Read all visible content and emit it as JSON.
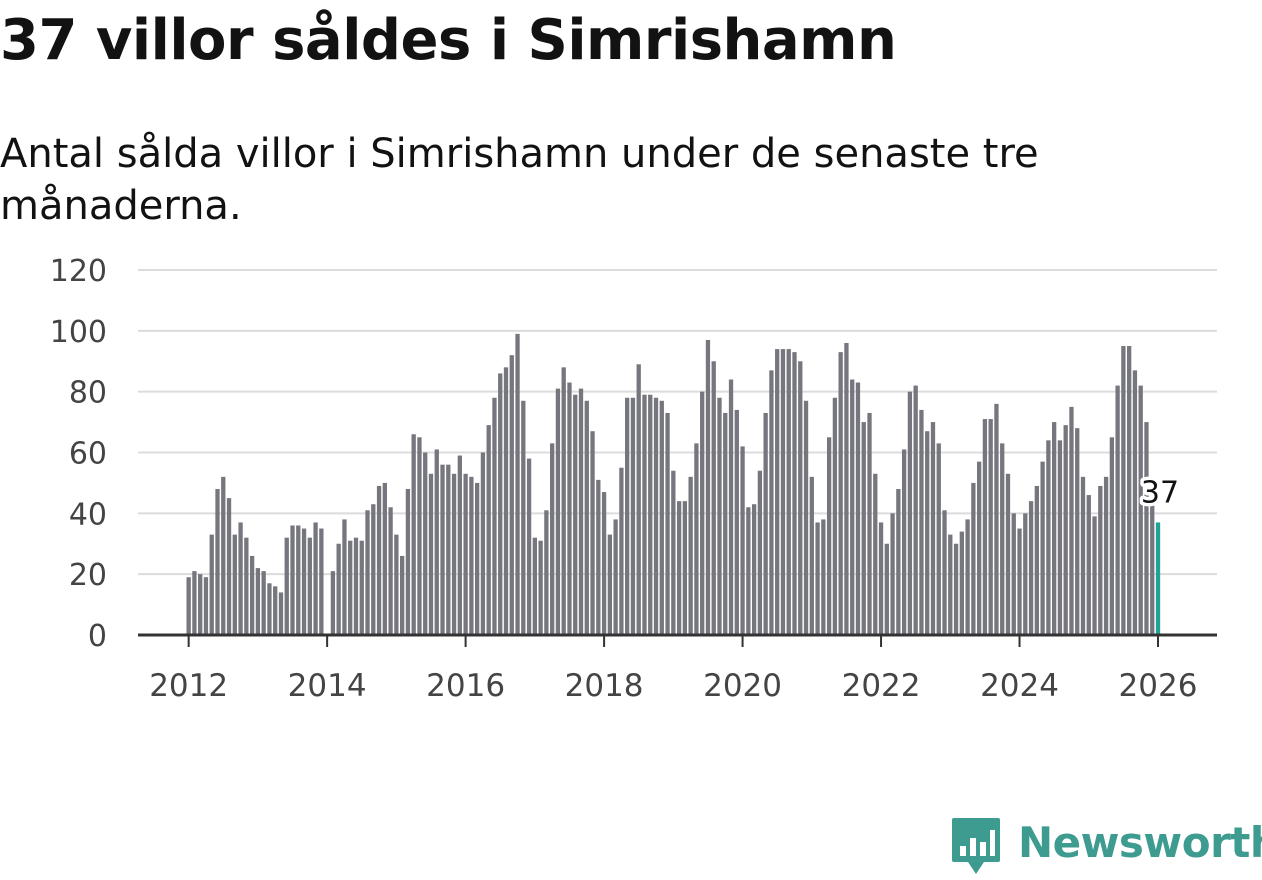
{
  "colors": {
    "bar": "#76767e",
    "highlight": "#22a195",
    "brand": "#3d9b90",
    "grid": "#dcdcdc"
  },
  "brand": {
    "name": "Newsworthy",
    "icon": "newsworthy-logo-icon"
  },
  "chart_data": {
    "type": "bar",
    "title": "37 villor såldes i Simrishamn",
    "subtitle": "Antal sålda villor i Simrishamn under de senaste tre månaderna.",
    "xlabel": "",
    "ylabel": "",
    "ylim": [
      0,
      120
    ],
    "yticks": [
      0,
      20,
      40,
      60,
      80,
      100,
      120
    ],
    "xticks": [
      "2012",
      "2014",
      "2016",
      "2018",
      "2020",
      "2022",
      "2024",
      "2026"
    ],
    "x_start": "2012-01",
    "x_step": "month",
    "grid": true,
    "highlight_label": "37",
    "values": [
      19,
      21,
      20,
      19,
      33,
      48,
      52,
      45,
      33,
      37,
      32,
      26,
      22,
      21,
      17,
      16,
      14,
      32,
      36,
      36,
      35,
      32,
      37,
      35,
      0,
      21,
      30,
      38,
      31,
      32,
      31,
      41,
      43,
      49,
      50,
      42,
      33,
      26,
      48,
      66,
      65,
      60,
      53,
      61,
      56,
      56,
      53,
      59,
      53,
      52,
      50,
      60,
      69,
      78,
      86,
      88,
      92,
      99,
      77,
      58,
      32,
      31,
      41,
      63,
      81,
      88,
      83,
      79,
      81,
      77,
      67,
      51,
      47,
      33,
      38,
      55,
      78,
      78,
      89,
      79,
      79,
      78,
      77,
      73,
      54,
      44,
      44,
      52,
      63,
      80,
      97,
      90,
      78,
      73,
      84,
      74,
      62,
      42,
      43,
      54,
      73,
      87,
      94,
      94,
      94,
      93,
      90,
      77,
      52,
      37,
      38,
      65,
      78,
      93,
      96,
      84,
      83,
      70,
      73,
      53,
      37,
      30,
      40,
      48,
      61,
      80,
      82,
      74,
      67,
      70,
      63,
      41,
      33,
      30,
      34,
      38,
      50,
      57,
      71,
      71,
      76,
      63,
      53,
      40,
      35,
      40,
      44,
      49,
      57,
      64,
      70,
      64,
      69,
      75,
      68,
      52,
      46,
      39,
      49,
      52,
      65,
      82,
      95,
      95,
      87,
      82,
      70,
      44,
      37
    ]
  }
}
